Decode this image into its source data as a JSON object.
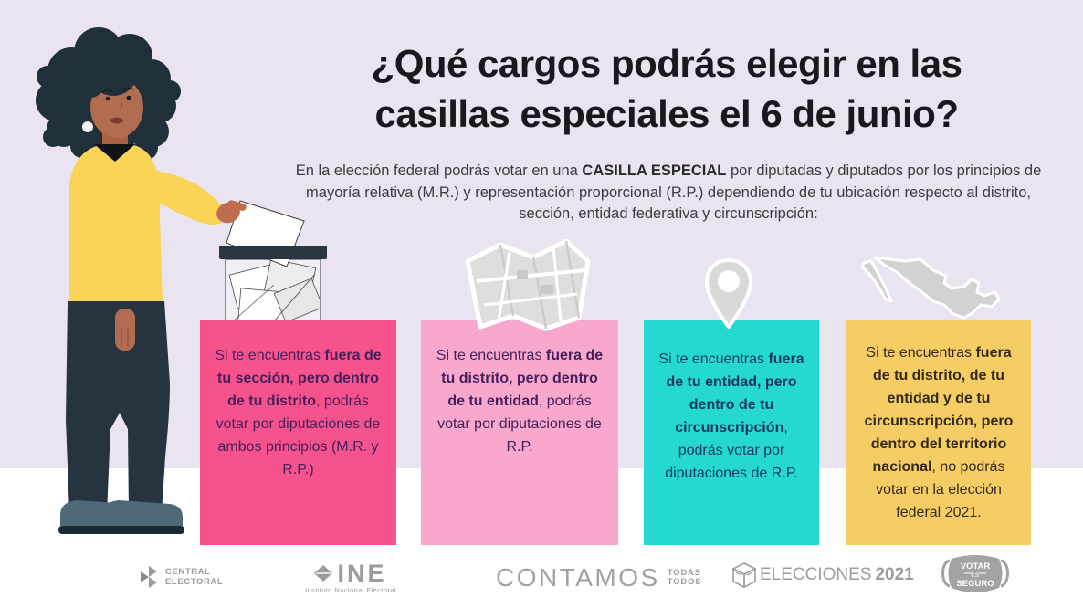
{
  "colors": {
    "background_top": "#eae4f1",
    "background_bottom": "#ffffff",
    "title_text": "#1d171d",
    "card1_bg": "#f6538e",
    "card2_bg": "#f8a8cd",
    "card3_bg": "#25d8d2",
    "card4_bg": "#f5cd65",
    "card12_text": "#45215b",
    "card3_text": "#14395e",
    "card4_text": "#38291d",
    "logo_gray": "#9c9c9c"
  },
  "header": {
    "title_line1": "¿Qué cargos podrás elegir en las",
    "title_line2": "casillas especiales el 6 de junio?",
    "intro_segments": [
      {
        "text": "En la elección federal podrás votar en una ",
        "bold": false
      },
      {
        "text": "CASILLA ESPECIAL",
        "bold": true
      },
      {
        "text": " por diputadas y diputados por los principios de mayoría relativa (M.R.) y representación proporcional (R.P.) dependiendo de tu ubicación respecto al distrito, sección, entidad federativa y circunscripción:",
        "bold": false
      }
    ]
  },
  "cards": [
    {
      "icon": "ballot-box-icon",
      "segments": [
        {
          "text": "Si te encuentras ",
          "bold": false
        },
        {
          "text": "fuera de tu sección, pero dentro de tu distrito",
          "bold": true
        },
        {
          "text": ", podrás votar por diputaciones de ambos principios (M.R. y R.P.)",
          "bold": false
        }
      ]
    },
    {
      "icon": "map-icon",
      "segments": [
        {
          "text": "Si te encuentras ",
          "bold": false
        },
        {
          "text": "fuera de tu distrito, pero dentro de tu entidad",
          "bold": true
        },
        {
          "text": ", podrás votar por diputaciones de R.P.",
          "bold": false
        }
      ]
    },
    {
      "icon": "location-pin-icon",
      "segments": [
        {
          "text": "Si te encuentras ",
          "bold": false
        },
        {
          "text": "fuera de tu entidad, pero dentro de tu circunscripción",
          "bold": true
        },
        {
          "text": ", podrás votar por diputaciones de R.P.",
          "bold": false
        }
      ]
    },
    {
      "icon": "mexico-map-icon",
      "segments": [
        {
          "text": "Si te encuentras ",
          "bold": false
        },
        {
          "text": "fuera de tu distrito, de tu entidad y de tu circunscripción, pero dentro del territorio nacional",
          "bold": true
        },
        {
          "text": ", no podrás votar en la elección federal 2021.",
          "bold": false
        }
      ]
    }
  ],
  "footer": {
    "central_electoral": {
      "line1": "CENTRAL",
      "line2": "ELECTORAL"
    },
    "ine": {
      "acronym": "INE",
      "subtitle": "Instituto Nacional Electoral"
    },
    "contamos": {
      "word": "CONTAMOS",
      "stack1": "TODAS",
      "stack2": "TODOS"
    },
    "elecciones": {
      "word": "ELECCIONES",
      "year": "2021"
    },
    "votar_seguro": {
      "line1": "VOTAR",
      "line2": "ES",
      "line3": "SEGURO"
    }
  }
}
